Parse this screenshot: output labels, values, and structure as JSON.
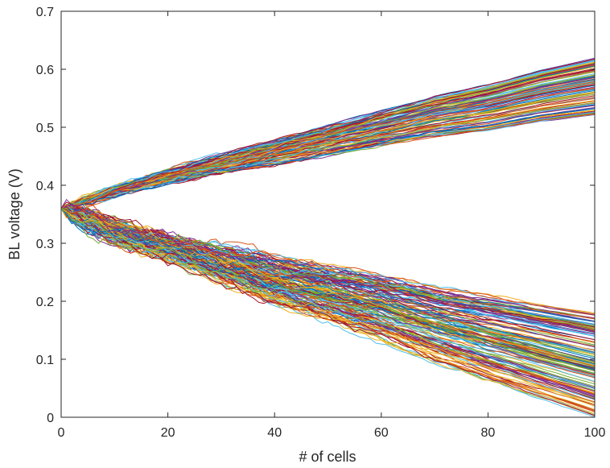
{
  "chart_data": {
    "type": "line",
    "title": "",
    "xlabel": "# of cells",
    "ylabel": "BL voltage (V)",
    "xlim": [
      0,
      100
    ],
    "ylim": [
      0,
      0.7
    ],
    "xticks": [
      0,
      20,
      40,
      60,
      80,
      100
    ],
    "yticks": [
      0,
      0.1,
      0.2,
      0.3,
      0.4,
      0.5,
      0.6,
      0.7
    ],
    "xtick_labels": [
      "0",
      "20",
      "40",
      "60",
      "80",
      "100"
    ],
    "ytick_labels": [
      "0",
      "0.1",
      "0.2",
      "0.3",
      "0.4",
      "0.5",
      "0.6",
      "0.7"
    ],
    "grid": false,
    "legend": "none",
    "palette": [
      "#0072BD",
      "#D95319",
      "#EDB120",
      "#7E2F8E",
      "#77AC30",
      "#4DBEEE",
      "#A2142F"
    ],
    "x": [
      0,
      10,
      20,
      30,
      40,
      50,
      60,
      70,
      80,
      90,
      100
    ],
    "series_groups": [
      {
        "group": "upper",
        "count": 100,
        "start_value": 0.36,
        "end_value_range": [
          0.52,
          0.62
        ],
        "representative_values": [
          0.36,
          0.39,
          0.415,
          0.435,
          0.455,
          0.475,
          0.495,
          0.515,
          0.53,
          0.55,
          0.565
        ]
      },
      {
        "group": "lower",
        "count": 150,
        "start_value": 0.36,
        "end_value_range": [
          0.0,
          0.18
        ],
        "representative_values": [
          0.36,
          0.32,
          0.29,
          0.26,
          0.23,
          0.205,
          0.18,
          0.15,
          0.125,
          0.1,
          0.075
        ]
      }
    ]
  }
}
